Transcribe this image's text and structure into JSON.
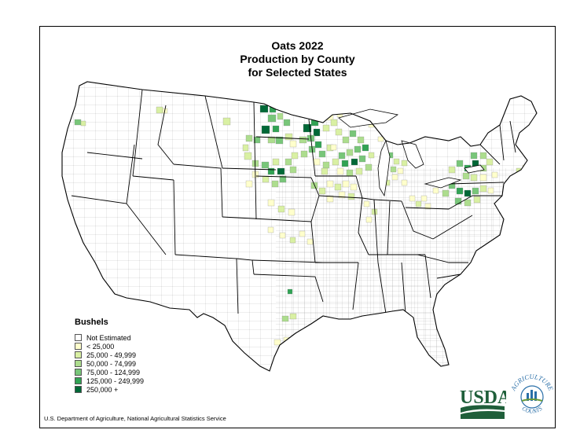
{
  "title": {
    "line1": "Oats 2022",
    "line2": "Production by County",
    "line3": "for Selected States"
  },
  "legend": {
    "title": "Bushels",
    "items": [
      {
        "label": "Not Estimated",
        "color": "#ffffff"
      },
      {
        "label": "< 25,000",
        "color": "#ffffcc"
      },
      {
        "label": "25,000 - 49,999",
        "color": "#d9f0a3"
      },
      {
        "label": "50,000 - 74,999",
        "color": "#addd8e"
      },
      {
        "label": "75,000 - 124,999",
        "color": "#78c679"
      },
      {
        "label": "125,000 - 249,999",
        "color": "#31a354"
      },
      {
        "label": "250,000 +",
        "color": "#006837"
      }
    ]
  },
  "source": "U.S. Department of Agriculture, National Agricultural Statistics Service",
  "logo": {
    "usda_text": "USDA",
    "seal_top": "AGRICULTURE",
    "seal_bottom": "COUNTS",
    "usda_color": "#1f5f3a",
    "seal_color": "#2a6fa8"
  }
}
